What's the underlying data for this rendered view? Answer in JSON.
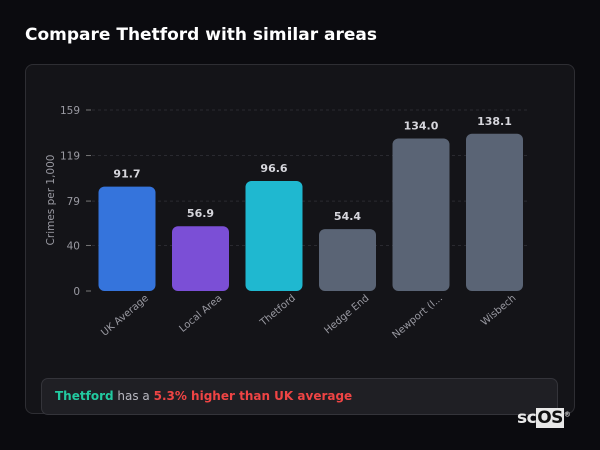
{
  "header": {
    "title": "Compare Thetford with similar areas"
  },
  "summary": {
    "area": "Thetford",
    "text": " has a ",
    "comparison": "5.3% higher than UK average"
  },
  "logo": {
    "text_a": "sc",
    "text_b": "OS",
    "mark": "®"
  },
  "chart_data": {
    "type": "bar",
    "title": "",
    "xlabel": "",
    "ylabel": "Crimes per 1,000",
    "ylim": [
      0,
      159
    ],
    "yticks": [
      0,
      40,
      79,
      119,
      159
    ],
    "grid": true,
    "categories": [
      "UK Average",
      "Local Area",
      "Thetford",
      "Hedge End",
      "Newport (I...",
      "Wisbech"
    ],
    "values": [
      91.7,
      56.9,
      96.6,
      54.4,
      134.0,
      138.1
    ],
    "value_labels": [
      "91.7",
      "56.9",
      "96.6",
      "54.4",
      "134.0",
      "138.1"
    ],
    "colors": [
      "#3574dc",
      "#7b4fd6",
      "#1fb8d0",
      "#5a6475",
      "#5a6475",
      "#5a6475"
    ]
  }
}
